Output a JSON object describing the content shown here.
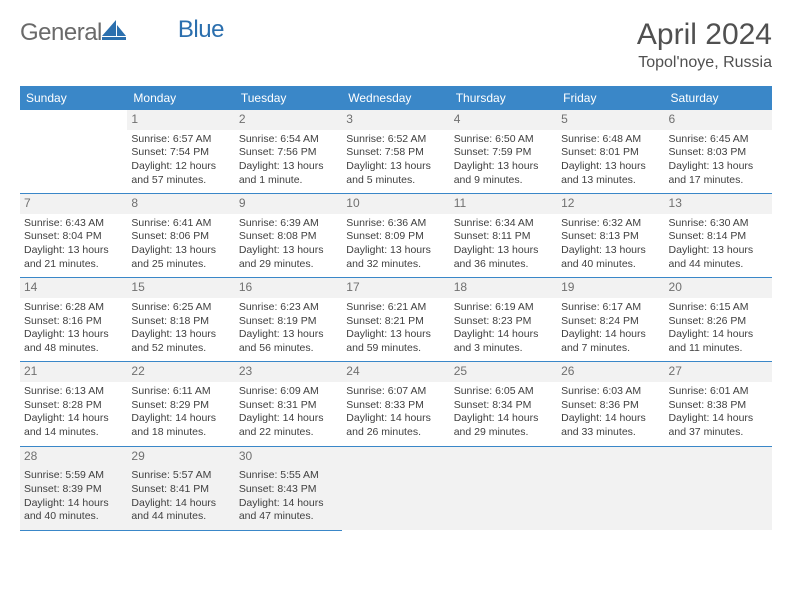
{
  "brand": {
    "part1": "General",
    "part2": "Blue",
    "color1": "#6a6a6a",
    "color2": "#2b6fae"
  },
  "header": {
    "month": "April 2024",
    "location": "Topol'noye, Russia"
  },
  "style": {
    "header_bg": "#3a87c8",
    "header_text": "#ffffff",
    "rule_color": "#3a87c8",
    "daynum_bg": "#f2f2f2",
    "body_text": "#404040",
    "trailing_bg": "#f2f2f2",
    "font_size_cell": 10.5,
    "font_size_daynum": 12,
    "font_size_header": 12
  },
  "day_names": [
    "Sunday",
    "Monday",
    "Tuesday",
    "Wednesday",
    "Thursday",
    "Friday",
    "Saturday"
  ],
  "weeks": [
    [
      null,
      {
        "n": "1",
        "sr": "Sunrise: 6:57 AM",
        "ss": "Sunset: 7:54 PM",
        "dl": "Daylight: 12 hours and 57 minutes."
      },
      {
        "n": "2",
        "sr": "Sunrise: 6:54 AM",
        "ss": "Sunset: 7:56 PM",
        "dl": "Daylight: 13 hours and 1 minute."
      },
      {
        "n": "3",
        "sr": "Sunrise: 6:52 AM",
        "ss": "Sunset: 7:58 PM",
        "dl": "Daylight: 13 hours and 5 minutes."
      },
      {
        "n": "4",
        "sr": "Sunrise: 6:50 AM",
        "ss": "Sunset: 7:59 PM",
        "dl": "Daylight: 13 hours and 9 minutes."
      },
      {
        "n": "5",
        "sr": "Sunrise: 6:48 AM",
        "ss": "Sunset: 8:01 PM",
        "dl": "Daylight: 13 hours and 13 minutes."
      },
      {
        "n": "6",
        "sr": "Sunrise: 6:45 AM",
        "ss": "Sunset: 8:03 PM",
        "dl": "Daylight: 13 hours and 17 minutes."
      }
    ],
    [
      {
        "n": "7",
        "sr": "Sunrise: 6:43 AM",
        "ss": "Sunset: 8:04 PM",
        "dl": "Daylight: 13 hours and 21 minutes."
      },
      {
        "n": "8",
        "sr": "Sunrise: 6:41 AM",
        "ss": "Sunset: 8:06 PM",
        "dl": "Daylight: 13 hours and 25 minutes."
      },
      {
        "n": "9",
        "sr": "Sunrise: 6:39 AM",
        "ss": "Sunset: 8:08 PM",
        "dl": "Daylight: 13 hours and 29 minutes."
      },
      {
        "n": "10",
        "sr": "Sunrise: 6:36 AM",
        "ss": "Sunset: 8:09 PM",
        "dl": "Daylight: 13 hours and 32 minutes."
      },
      {
        "n": "11",
        "sr": "Sunrise: 6:34 AM",
        "ss": "Sunset: 8:11 PM",
        "dl": "Daylight: 13 hours and 36 minutes."
      },
      {
        "n": "12",
        "sr": "Sunrise: 6:32 AM",
        "ss": "Sunset: 8:13 PM",
        "dl": "Daylight: 13 hours and 40 minutes."
      },
      {
        "n": "13",
        "sr": "Sunrise: 6:30 AM",
        "ss": "Sunset: 8:14 PM",
        "dl": "Daylight: 13 hours and 44 minutes."
      }
    ],
    [
      {
        "n": "14",
        "sr": "Sunrise: 6:28 AM",
        "ss": "Sunset: 8:16 PM",
        "dl": "Daylight: 13 hours and 48 minutes."
      },
      {
        "n": "15",
        "sr": "Sunrise: 6:25 AM",
        "ss": "Sunset: 8:18 PM",
        "dl": "Daylight: 13 hours and 52 minutes."
      },
      {
        "n": "16",
        "sr": "Sunrise: 6:23 AM",
        "ss": "Sunset: 8:19 PM",
        "dl": "Daylight: 13 hours and 56 minutes."
      },
      {
        "n": "17",
        "sr": "Sunrise: 6:21 AM",
        "ss": "Sunset: 8:21 PM",
        "dl": "Daylight: 13 hours and 59 minutes."
      },
      {
        "n": "18",
        "sr": "Sunrise: 6:19 AM",
        "ss": "Sunset: 8:23 PM",
        "dl": "Daylight: 14 hours and 3 minutes."
      },
      {
        "n": "19",
        "sr": "Sunrise: 6:17 AM",
        "ss": "Sunset: 8:24 PM",
        "dl": "Daylight: 14 hours and 7 minutes."
      },
      {
        "n": "20",
        "sr": "Sunrise: 6:15 AM",
        "ss": "Sunset: 8:26 PM",
        "dl": "Daylight: 14 hours and 11 minutes."
      }
    ],
    [
      {
        "n": "21",
        "sr": "Sunrise: 6:13 AM",
        "ss": "Sunset: 8:28 PM",
        "dl": "Daylight: 14 hours and 14 minutes."
      },
      {
        "n": "22",
        "sr": "Sunrise: 6:11 AM",
        "ss": "Sunset: 8:29 PM",
        "dl": "Daylight: 14 hours and 18 minutes."
      },
      {
        "n": "23",
        "sr": "Sunrise: 6:09 AM",
        "ss": "Sunset: 8:31 PM",
        "dl": "Daylight: 14 hours and 22 minutes."
      },
      {
        "n": "24",
        "sr": "Sunrise: 6:07 AM",
        "ss": "Sunset: 8:33 PM",
        "dl": "Daylight: 14 hours and 26 minutes."
      },
      {
        "n": "25",
        "sr": "Sunrise: 6:05 AM",
        "ss": "Sunset: 8:34 PM",
        "dl": "Daylight: 14 hours and 29 minutes."
      },
      {
        "n": "26",
        "sr": "Sunrise: 6:03 AM",
        "ss": "Sunset: 8:36 PM",
        "dl": "Daylight: 14 hours and 33 minutes."
      },
      {
        "n": "27",
        "sr": "Sunrise: 6:01 AM",
        "ss": "Sunset: 8:38 PM",
        "dl": "Daylight: 14 hours and 37 minutes."
      }
    ],
    [
      {
        "n": "28",
        "sr": "Sunrise: 5:59 AM",
        "ss": "Sunset: 8:39 PM",
        "dl": "Daylight: 14 hours and 40 minutes."
      },
      {
        "n": "29",
        "sr": "Sunrise: 5:57 AM",
        "ss": "Sunset: 8:41 PM",
        "dl": "Daylight: 14 hours and 44 minutes."
      },
      {
        "n": "30",
        "sr": "Sunrise: 5:55 AM",
        "ss": "Sunset: 8:43 PM",
        "dl": "Daylight: 14 hours and 47 minutes."
      },
      null,
      null,
      null,
      null
    ]
  ]
}
